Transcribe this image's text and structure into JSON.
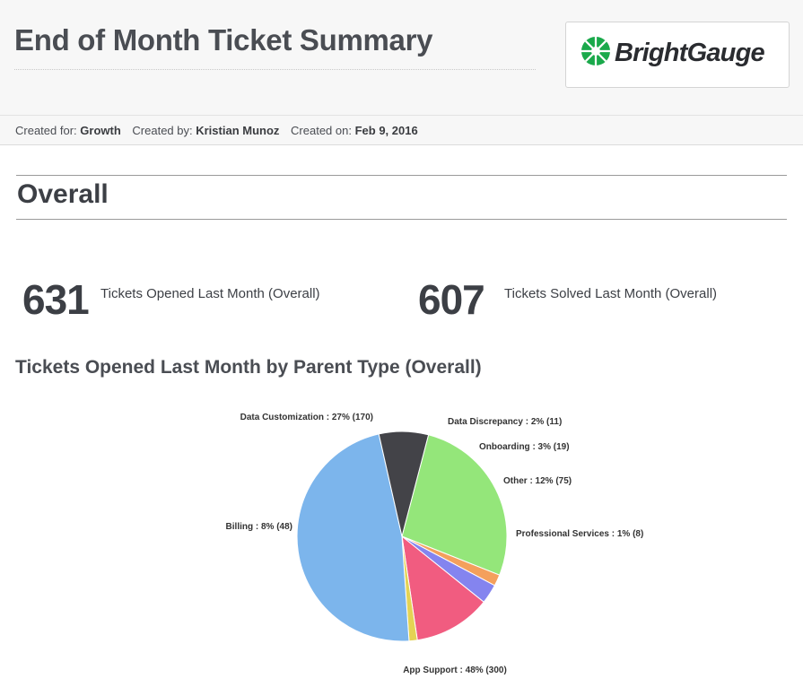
{
  "header": {
    "title": "End of Month Ticket Summary",
    "logo_text": "BrightGauge",
    "logo_icon": "brightgauge-logo-icon"
  },
  "meta": {
    "created_for_label": "Created for:",
    "created_for": "Growth",
    "created_by_label": "Created by:",
    "created_by": "Kristian Munoz",
    "created_on_label": "Created on:",
    "created_on": "Feb 9, 2016"
  },
  "section": {
    "title": "Overall"
  },
  "stats": [
    {
      "value": "631",
      "label": "Tickets Opened Last Month (Overall)"
    },
    {
      "value": "607",
      "label": "Tickets Solved Last Month (Overall)"
    }
  ],
  "colors": {
    "data_customization": "#94e67a",
    "data_discrepancy": "#f4a05c",
    "onboarding": "#8484ef",
    "other": "#f15c80",
    "professional_services": "#e4d354",
    "app_support": "#7cb5ec",
    "billing": "#434348"
  },
  "chart_data": {
    "type": "pie",
    "title": "Tickets Opened Last Month by Parent Type (Overall)",
    "slices": [
      {
        "name": "Data Customization",
        "value": 170,
        "percent": 27,
        "label": "Data Customization : 27% (170)",
        "color": "#94e67a"
      },
      {
        "name": "Data Discrepancy",
        "value": 11,
        "percent": 2,
        "label": "Data Discrepancy : 2% (11)",
        "color": "#f4a05c"
      },
      {
        "name": "Onboarding",
        "value": 19,
        "percent": 3,
        "label": "Onboarding : 3% (19)",
        "color": "#8484ef"
      },
      {
        "name": "Other",
        "value": 75,
        "percent": 12,
        "label": "Other : 12% (75)",
        "color": "#f15c80"
      },
      {
        "name": "Professional Services",
        "value": 8,
        "percent": 1,
        "label": "Professional Services : 1% (8)",
        "color": "#e4d354"
      },
      {
        "name": "App Support",
        "value": 300,
        "percent": 48,
        "label": "App Support : 48% (300)",
        "color": "#7cb5ec"
      },
      {
        "name": "Billing",
        "value": 48,
        "percent": 8,
        "label": "Billing : 8% (48)",
        "color": "#434348"
      }
    ]
  }
}
